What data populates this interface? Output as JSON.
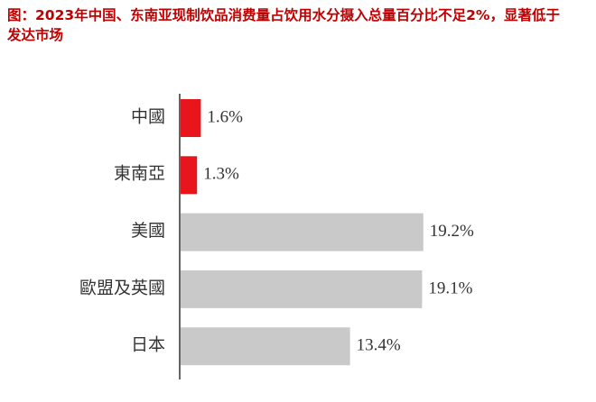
{
  "chart_data": {
    "type": "bar",
    "orientation": "horizontal",
    "title": "图：2023年中国、东南亚现制饮品消费量占饮用水分摄入总量百分比不足2%，显著低于发达市场",
    "categories": [
      "中國",
      "東南亞",
      "美國",
      "歐盟及英國",
      "日本"
    ],
    "values": [
      1.6,
      1.3,
      19.2,
      19.1,
      13.4
    ],
    "value_labels": [
      "1.6%",
      "1.3%",
      "19.2%",
      "19.1%",
      "13.4%"
    ],
    "colors": [
      "#e8151d",
      "#e8151d",
      "#c9c9c9",
      "#c9c9c9",
      "#c9c9c9"
    ]
  }
}
